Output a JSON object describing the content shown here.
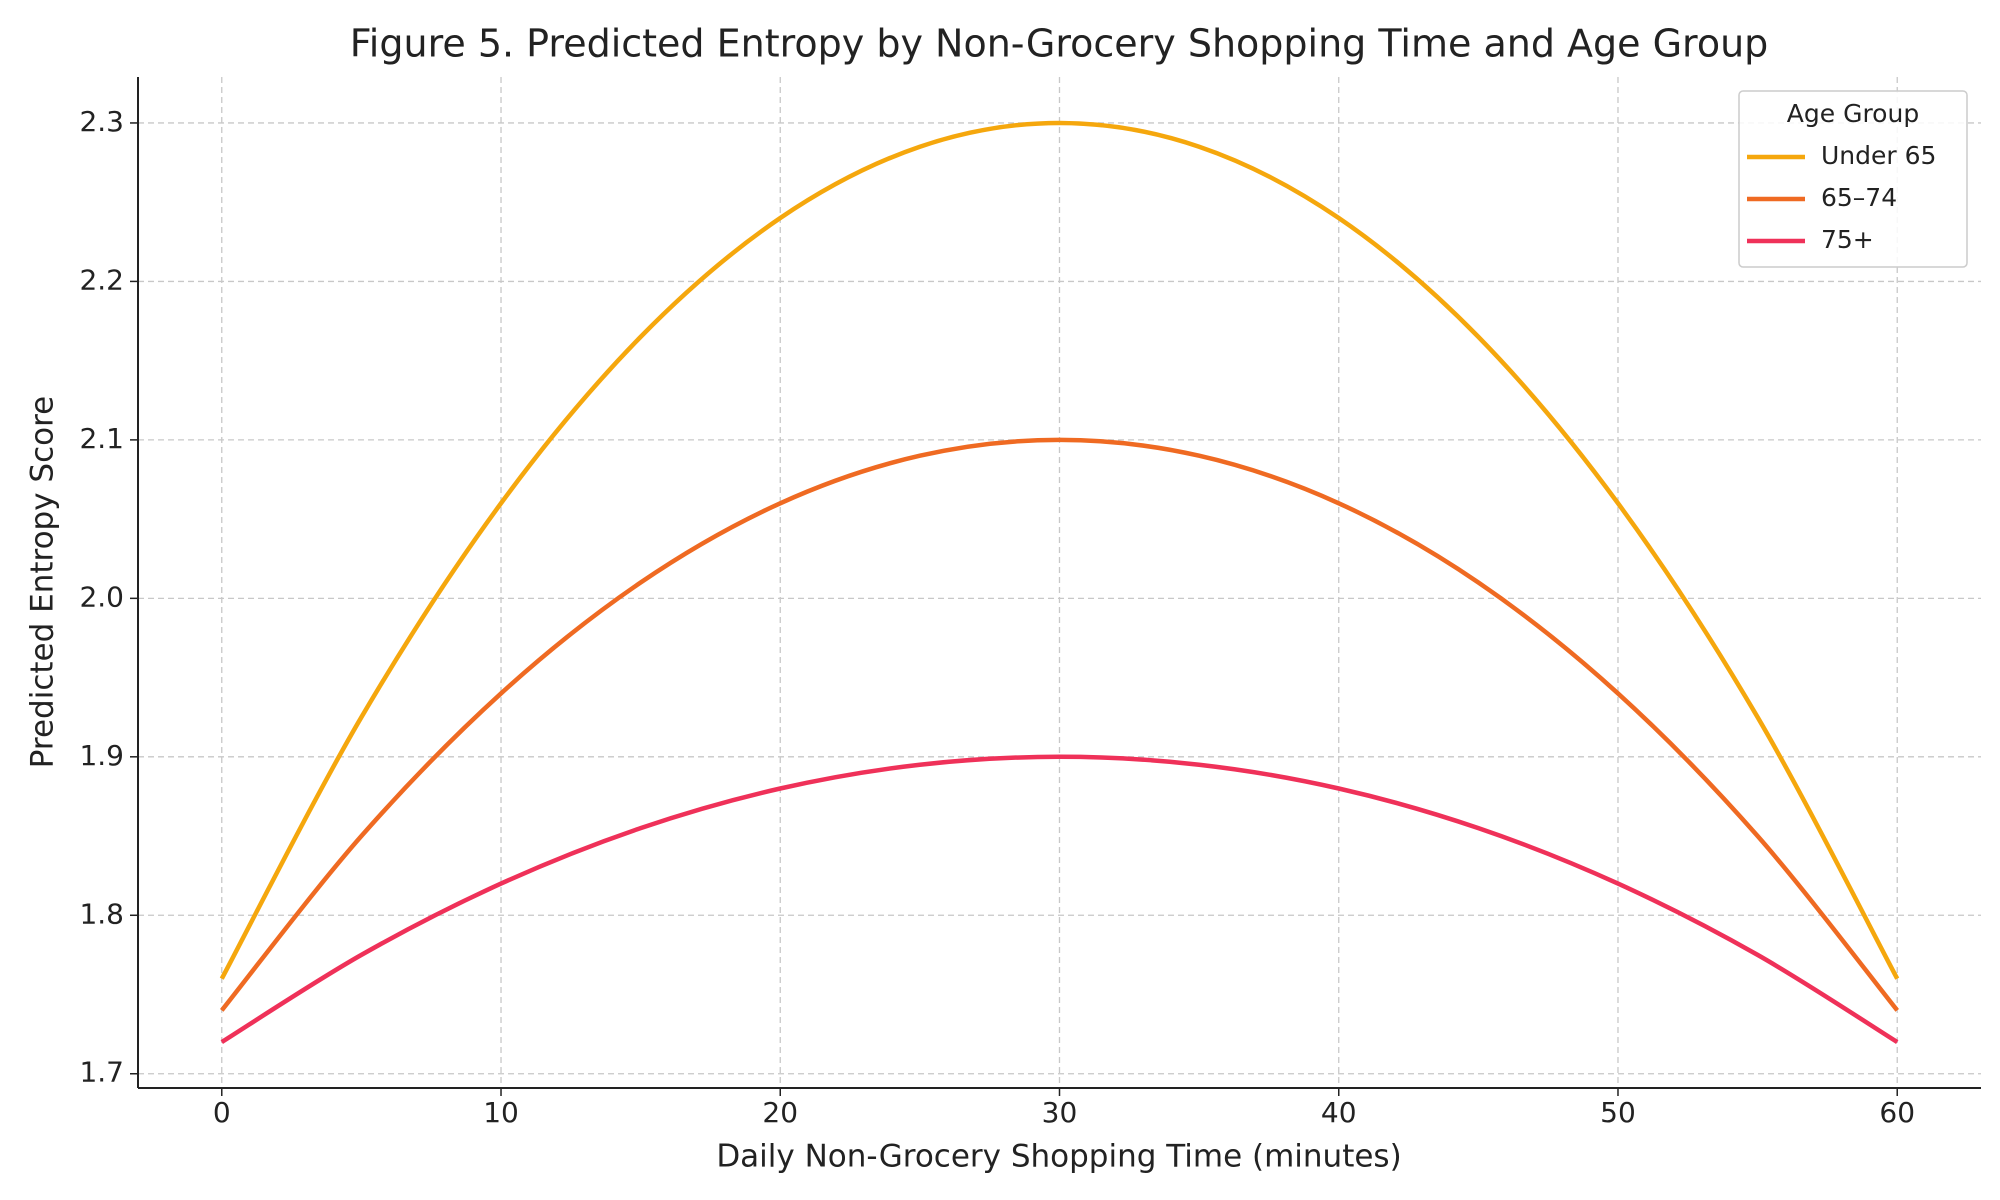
{
  "chart_data": {
    "type": "line",
    "title": "Figure 5. Predicted Entropy by Non-Grocery Shopping Time and Age Group",
    "x_label": "Daily Non-Grocery Shopping Time (minutes)",
    "y_label": "Predicted Entropy Score",
    "x": [
      0,
      5,
      10,
      15,
      20,
      25,
      30,
      35,
      40,
      45,
      50,
      55,
      60
    ],
    "series": [
      {
        "name": "Under 65",
        "color": "#f5a70d",
        "values": [
          1.76,
          1.925,
          2.06,
          2.165,
          2.24,
          2.285,
          2.3,
          2.285,
          2.24,
          2.165,
          2.06,
          1.925,
          1.76
        ]
      },
      {
        "name": "65–74",
        "color": "#ef6a22",
        "values": [
          1.74,
          1.85,
          1.94,
          2.01,
          2.06,
          2.09,
          2.1,
          2.09,
          2.06,
          2.01,
          1.94,
          1.85,
          1.74
        ]
      },
      {
        "name": "75+",
        "color": "#ef3159",
        "values": [
          1.72,
          1.775,
          1.82,
          1.855,
          1.88,
          1.895,
          1.9,
          1.895,
          1.88,
          1.855,
          1.82,
          1.775,
          1.72
        ]
      }
    ],
    "xlim": [
      -3,
      63
    ],
    "xticks": [
      0,
      10,
      20,
      30,
      40,
      50,
      60
    ],
    "ylim": [
      1.691,
      2.329
    ],
    "yticks": [
      {
        "value": 1.7,
        "label": "1.7"
      },
      {
        "value": 1.8,
        "label": "1.8"
      },
      {
        "value": 1.9,
        "label": "1.9"
      },
      {
        "value": 2.0,
        "label": "2.0"
      },
      {
        "value": 2.1,
        "label": "2.1"
      },
      {
        "value": 2.2,
        "label": "2.2"
      },
      {
        "value": 2.3,
        "label": "2.3"
      }
    ],
    "grid": true,
    "legend_title": "Age Group",
    "legend_position": "upper-right"
  }
}
